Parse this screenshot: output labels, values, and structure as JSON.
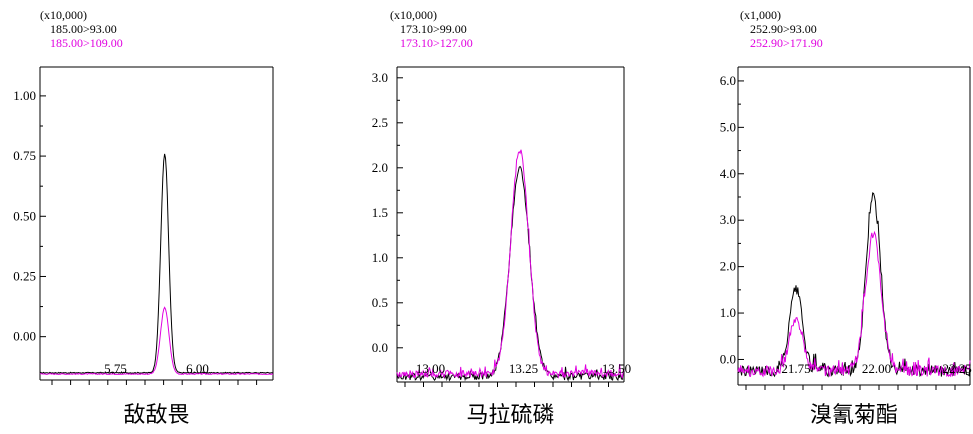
{
  "chart_data": [
    {
      "type": "line",
      "title": "敌敌畏",
      "multiplier": "(x10,000)",
      "series": [
        {
          "name": "185.00>93.00",
          "color": "#000000",
          "baseline": -0.15,
          "peak_x": 5.9,
          "peak_y": 0.76,
          "width": 0.012
        },
        {
          "name": "185.00>109.00",
          "color": "#e000e0",
          "baseline": -0.155,
          "peak_x": 5.9,
          "peak_y": 0.12,
          "width": 0.013
        }
      ],
      "x_ticks": [
        {
          "value": 5.75,
          "label": "5.75"
        },
        {
          "value": 6.0,
          "label": "6.00"
        }
      ],
      "y_ticks": [
        {
          "value": 0.0,
          "label": "0.00"
        },
        {
          "value": 0.25,
          "label": "0.25"
        },
        {
          "value": 0.5,
          "label": "0.50"
        },
        {
          "value": 0.75,
          "label": "0.75"
        },
        {
          "value": 1.0,
          "label": "1.00"
        }
      ],
      "xlim": [
        5.52,
        6.23
      ],
      "ylim": [
        -0.18,
        1.12
      ],
      "xlabel": "",
      "ylabel": "",
      "grid": false
    },
    {
      "type": "line",
      "title": "马拉硫磷",
      "multiplier": "(x10,000)",
      "series": [
        {
          "name": "173.10>99.00",
          "color": "#000000",
          "baseline": -0.32,
          "peak_x": 13.24,
          "peak_y": 2.0,
          "width": 0.026
        },
        {
          "name": "173.10>127.00",
          "color": "#e000e0",
          "baseline": -0.29,
          "peak_x": 13.24,
          "peak_y": 2.2,
          "width": 0.024
        }
      ],
      "x_ticks": [
        {
          "value": 13.0,
          "label": "13.00"
        },
        {
          "value": 13.25,
          "label": "13.25"
        },
        {
          "value": 13.5,
          "label": "13.50"
        }
      ],
      "y_ticks": [
        {
          "value": 0.0,
          "label": "0.0"
        },
        {
          "value": 0.5,
          "label": "0.5"
        },
        {
          "value": 1.0,
          "label": "1.0"
        },
        {
          "value": 1.5,
          "label": "1.5"
        },
        {
          "value": 2.0,
          "label": "2.0"
        },
        {
          "value": 2.5,
          "label": "2.5"
        },
        {
          "value": 3.0,
          "label": "3.0"
        }
      ],
      "xlim": [
        12.91,
        13.52
      ],
      "ylim": [
        -0.38,
        3.12
      ],
      "xlabel": "",
      "ylabel": "",
      "grid": false
    },
    {
      "type": "line",
      "title": "溴氰菊酯",
      "multiplier": "(x1,000)",
      "series": [
        {
          "name": "252.90>93.00",
          "color": "#000000",
          "baseline": -0.25,
          "peaks": [
            {
              "x": 21.75,
              "y": 1.5,
              "w": 0.02
            },
            {
              "x": 21.99,
              "y": 3.5,
              "w": 0.022
            }
          ]
        },
        {
          "name": "252.90>171.90",
          "color": "#e000e0",
          "baseline": -0.25,
          "peaks": [
            {
              "x": 21.75,
              "y": 0.9,
              "w": 0.02
            },
            {
              "x": 21.99,
              "y": 2.7,
              "w": 0.024
            }
          ]
        }
      ],
      "x_ticks": [
        {
          "value": 21.75,
          "label": "21.75"
        },
        {
          "value": 22.0,
          "label": "22.00"
        },
        {
          "value": 22.25,
          "label": "22.25"
        }
      ],
      "y_ticks": [
        {
          "value": 0.0,
          "label": "0.0"
        },
        {
          "value": 1.0,
          "label": "1.0"
        },
        {
          "value": 2.0,
          "label": "2.0"
        },
        {
          "value": 3.0,
          "label": "3.0"
        },
        {
          "value": 4.0,
          "label": "4.0"
        },
        {
          "value": 5.0,
          "label": "5.0"
        },
        {
          "value": 6.0,
          "label": "6.0"
        }
      ],
      "xlim": [
        21.57,
        22.29
      ],
      "ylim": [
        -0.55,
        6.3
      ],
      "xlabel": "",
      "ylabel": "",
      "grid": false
    }
  ]
}
